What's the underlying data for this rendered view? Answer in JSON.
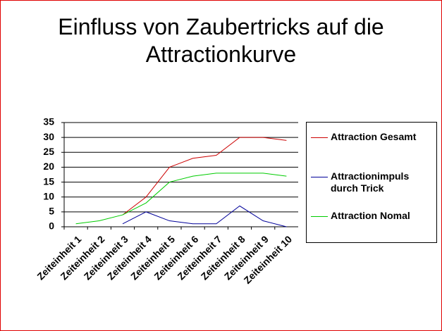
{
  "chart_data": {
    "type": "line",
    "title": "Einfluss von Zaubertricks auf die Attractionkurve",
    "categories": [
      "Zeiteinheit 1",
      "Zeiteinheit 2",
      "Zeiteinheit 3",
      "Zeiteinheit 4",
      "Zeiteinheit 5",
      "Zeiteinheit 6",
      "Zeiteinheit 7",
      "Zeiteinheit 8",
      "Zeiteinheit 9",
      "Zeiteinheit 10"
    ],
    "series": [
      {
        "name": "Attraction Gesamt",
        "color": "#cc0000",
        "values": [
          null,
          null,
          4,
          10,
          20,
          23,
          24,
          30,
          30,
          29
        ]
      },
      {
        "name": "Attractionimpuls durch Trick",
        "color": "#000099",
        "values": [
          null,
          null,
          1,
          5,
          2,
          1,
          1,
          7,
          2,
          0
        ]
      },
      {
        "name": "Attraction Nomal",
        "color": "#00cc00",
        "values": [
          1,
          2,
          4,
          8,
          15,
          17,
          18,
          18,
          18,
          17
        ]
      }
    ],
    "ylim": [
      0,
      35
    ],
    "yticks": [
      0,
      5,
      10,
      15,
      20,
      25,
      30,
      35
    ],
    "grid": true
  }
}
